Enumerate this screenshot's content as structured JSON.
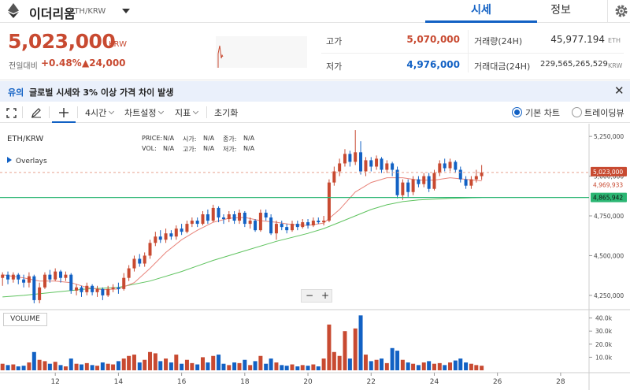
{
  "header": {
    "coin_name": "이더리움",
    "pair": "ETH/KRW",
    "tabs": [
      "시세",
      "정보"
    ]
  },
  "price": {
    "current": "5,023,000",
    "unit": "KRW",
    "change_label": "전일대비",
    "change_pct": "+0.48%",
    "change_abs": "▲24,000"
  },
  "stats": {
    "high_label": "고가",
    "high_value": "5,070,000",
    "low_label": "저가",
    "low_value": "4,976,000",
    "volume_label": "거래량(24H)",
    "volume_value": "45,977.194",
    "volume_unit": "ETH",
    "amount_label": "거래대금(24H)",
    "amount_value": "229,565,265,529",
    "amount_unit": "KRW"
  },
  "notice": {
    "tag": "유의",
    "text": "글로벌 시세와 3% 이상 가격 차이 발생"
  },
  "toolbar": {
    "interval": "4시간",
    "chart_settings": "차트설정",
    "indicators": "지표",
    "reset": "초기화",
    "basic_chart": "기본 차트",
    "tradingview": "트레이딩뷰"
  },
  "colors": {
    "up": "#c84a31",
    "down": "#1261c4",
    "ma_short": "#e8837a",
    "ma_long": "#5fc35f",
    "accent": "#1261c4"
  },
  "chart_data": {
    "type": "candlestick",
    "pair_label": "ETH/KRW",
    "overlays_label": "Overlays",
    "info": {
      "price_label": "PRICE:",
      "price": "N/A",
      "vol_label": "VOL:",
      "vol": "N/A",
      "open_label": "시가:",
      "open": "N/A",
      "high_label": "고가:",
      "high": "N/A",
      "close_label": "종가:",
      "close": "N/A",
      "low_label": "저가:",
      "low": "N/A"
    },
    "x_ticks": [
      "12",
      "14",
      "16",
      "18",
      "20",
      "22",
      "24",
      "26",
      "28"
    ],
    "y_ticks": [
      "5,250,000",
      "5,000,000",
      "4,750,000",
      "4,500,000",
      "4,250,000"
    ],
    "y_tick_values": [
      5250000,
      5000000,
      4750000,
      4500000,
      4250000
    ],
    "ylim": [
      4180000,
      5330000
    ],
    "xlim": [
      10.25,
      28.9
    ],
    "price_labels": [
      {
        "text": "5,023,000",
        "value": 5023000
      },
      {
        "text": "4,969,933",
        "value": 4969933
      },
      {
        "text": "4,865,942",
        "value": 4865942
      }
    ],
    "volume_label": "VOLUME",
    "volume_ticks": [
      "40.0k",
      "30.0k",
      "20.0k",
      "10.0k"
    ],
    "volume_tick_values": [
      40000,
      30000,
      20000,
      10000
    ],
    "volume_max": 44000,
    "candles": [
      {
        "x": 10.33,
        "o": 4360000,
        "c": 4380000,
        "h": 4395000,
        "l": 4310000,
        "v": 5000
      },
      {
        "x": 10.5,
        "o": 4380000,
        "c": 4350000,
        "h": 4400000,
        "l": 4320000,
        "v": 4000
      },
      {
        "x": 10.67,
        "o": 4350000,
        "c": 4380000,
        "h": 4395000,
        "l": 4330000,
        "v": 4500
      },
      {
        "x": 10.83,
        "o": 4380000,
        "c": 4350000,
        "h": 4390000,
        "l": 4320000,
        "v": 3000
      },
      {
        "x": 11.0,
        "o": 4350000,
        "c": 4330000,
        "h": 4380000,
        "l": 4300000,
        "v": 3500
      },
      {
        "x": 11.17,
        "o": 4330000,
        "c": 4370000,
        "h": 4395000,
        "l": 4300000,
        "v": 6000
      },
      {
        "x": 11.33,
        "o": 4370000,
        "c": 4220000,
        "h": 4380000,
        "l": 4200000,
        "v": 14000
      },
      {
        "x": 11.5,
        "o": 4220000,
        "c": 4300000,
        "h": 4330000,
        "l": 4200000,
        "v": 8000
      },
      {
        "x": 11.67,
        "o": 4300000,
        "c": 4380000,
        "h": 4395000,
        "l": 4290000,
        "v": 7000
      },
      {
        "x": 11.83,
        "o": 4380000,
        "c": 4350000,
        "h": 4410000,
        "l": 4330000,
        "v": 5000
      },
      {
        "x": 12.0,
        "o": 4350000,
        "c": 4400000,
        "h": 4420000,
        "l": 4340000,
        "v": 6500
      },
      {
        "x": 12.17,
        "o": 4400000,
        "c": 4360000,
        "h": 4410000,
        "l": 4330000,
        "v": 4000
      },
      {
        "x": 12.33,
        "o": 4360000,
        "c": 4380000,
        "h": 4400000,
        "l": 4340000,
        "v": 3000
      },
      {
        "x": 12.5,
        "o": 4380000,
        "c": 4280000,
        "h": 4390000,
        "l": 4260000,
        "v": 9000
      },
      {
        "x": 12.67,
        "o": 4280000,
        "c": 4300000,
        "h": 4320000,
        "l": 4250000,
        "v": 5000
      },
      {
        "x": 12.83,
        "o": 4300000,
        "c": 4270000,
        "h": 4310000,
        "l": 4240000,
        "v": 4500
      },
      {
        "x": 13.0,
        "o": 4270000,
        "c": 4310000,
        "h": 4330000,
        "l": 4250000,
        "v": 5500
      },
      {
        "x": 13.17,
        "o": 4310000,
        "c": 4270000,
        "h": 4320000,
        "l": 4250000,
        "v": 4000
      },
      {
        "x": 13.33,
        "o": 4270000,
        "c": 4290000,
        "h": 4310000,
        "l": 4240000,
        "v": 3500
      },
      {
        "x": 13.5,
        "o": 4290000,
        "c": 4250000,
        "h": 4300000,
        "l": 4220000,
        "v": 6000
      },
      {
        "x": 13.67,
        "o": 4250000,
        "c": 4290000,
        "h": 4310000,
        "l": 4240000,
        "v": 5000
      },
      {
        "x": 13.83,
        "o": 4290000,
        "c": 4300000,
        "h": 4320000,
        "l": 4270000,
        "v": 4500
      },
      {
        "x": 14.0,
        "o": 4300000,
        "c": 4290000,
        "h": 4330000,
        "l": 4260000,
        "v": 7000
      },
      {
        "x": 14.17,
        "o": 4290000,
        "c": 4360000,
        "h": 4390000,
        "l": 4280000,
        "v": 9000
      },
      {
        "x": 14.33,
        "o": 4360000,
        "c": 4420000,
        "h": 4440000,
        "l": 4340000,
        "v": 11000
      },
      {
        "x": 14.5,
        "o": 4420000,
        "c": 4480000,
        "h": 4500000,
        "l": 4400000,
        "v": 12000
      },
      {
        "x": 14.67,
        "o": 4480000,
        "c": 4450000,
        "h": 4510000,
        "l": 4430000,
        "v": 6000
      },
      {
        "x": 14.83,
        "o": 4450000,
        "c": 4500000,
        "h": 4520000,
        "l": 4430000,
        "v": 8000
      },
      {
        "x": 15.0,
        "o": 4500000,
        "c": 4580000,
        "h": 4600000,
        "l": 4480000,
        "v": 14000
      },
      {
        "x": 15.17,
        "o": 4580000,
        "c": 4620000,
        "h": 4650000,
        "l": 4560000,
        "v": 13000
      },
      {
        "x": 15.33,
        "o": 4620000,
        "c": 4600000,
        "h": 4660000,
        "l": 4580000,
        "v": 7000
      },
      {
        "x": 15.5,
        "o": 4600000,
        "c": 4640000,
        "h": 4670000,
        "l": 4580000,
        "v": 9000
      },
      {
        "x": 15.67,
        "o": 4640000,
        "c": 4620000,
        "h": 4660000,
        "l": 4600000,
        "v": 6000
      },
      {
        "x": 15.83,
        "o": 4620000,
        "c": 4670000,
        "h": 4690000,
        "l": 4600000,
        "v": 12000
      },
      {
        "x": 16.0,
        "o": 4670000,
        "c": 4650000,
        "h": 4700000,
        "l": 4630000,
        "v": 5000
      },
      {
        "x": 16.17,
        "o": 4650000,
        "c": 4700000,
        "h": 4720000,
        "l": 4640000,
        "v": 8000
      },
      {
        "x": 16.33,
        "o": 4700000,
        "c": 4720000,
        "h": 4740000,
        "l": 4680000,
        "v": 5500
      },
      {
        "x": 16.5,
        "o": 4720000,
        "c": 4700000,
        "h": 4740000,
        "l": 4680000,
        "v": 4500
      },
      {
        "x": 16.67,
        "o": 4700000,
        "c": 4760000,
        "h": 4780000,
        "l": 4690000,
        "v": 10000
      },
      {
        "x": 16.83,
        "o": 4760000,
        "c": 4720000,
        "h": 4790000,
        "l": 4700000,
        "v": 6000
      },
      {
        "x": 17.0,
        "o": 4720000,
        "c": 4800000,
        "h": 4820000,
        "l": 4710000,
        "v": 11000
      },
      {
        "x": 17.17,
        "o": 4800000,
        "c": 4740000,
        "h": 4810000,
        "l": 4710000,
        "v": 12000
      },
      {
        "x": 17.33,
        "o": 4740000,
        "c": 4730000,
        "h": 4760000,
        "l": 4700000,
        "v": 5000
      },
      {
        "x": 17.5,
        "o": 4730000,
        "c": 4760000,
        "h": 4780000,
        "l": 4710000,
        "v": 4000
      },
      {
        "x": 17.67,
        "o": 4760000,
        "c": 4720000,
        "h": 4780000,
        "l": 4700000,
        "v": 6000
      },
      {
        "x": 17.83,
        "o": 4720000,
        "c": 4770000,
        "h": 4790000,
        "l": 4700000,
        "v": 5500
      },
      {
        "x": 18.0,
        "o": 4770000,
        "c": 4700000,
        "h": 4780000,
        "l": 4680000,
        "v": 8000
      },
      {
        "x": 18.17,
        "o": 4700000,
        "c": 4720000,
        "h": 4740000,
        "l": 4670000,
        "v": 4000
      },
      {
        "x": 18.33,
        "o": 4720000,
        "c": 4660000,
        "h": 4730000,
        "l": 4650000,
        "v": 7000
      },
      {
        "x": 18.5,
        "o": 4660000,
        "c": 4770000,
        "h": 4790000,
        "l": 4650000,
        "v": 11000
      },
      {
        "x": 18.67,
        "o": 4770000,
        "c": 4740000,
        "h": 4790000,
        "l": 4720000,
        "v": 5000
      },
      {
        "x": 18.83,
        "o": 4740000,
        "c": 4640000,
        "h": 4760000,
        "l": 4630000,
        "v": 9000
      },
      {
        "x": 19.0,
        "o": 4640000,
        "c": 4700000,
        "h": 4720000,
        "l": 4600000,
        "v": 6000
      },
      {
        "x": 19.17,
        "o": 4700000,
        "c": 4680000,
        "h": 4720000,
        "l": 4660000,
        "v": 4000
      },
      {
        "x": 19.33,
        "o": 4680000,
        "c": 4660000,
        "h": 4700000,
        "l": 4640000,
        "v": 3500
      },
      {
        "x": 19.5,
        "o": 4660000,
        "c": 4700000,
        "h": 4720000,
        "l": 4650000,
        "v": 4500
      },
      {
        "x": 19.67,
        "o": 4700000,
        "c": 4680000,
        "h": 4720000,
        "l": 4660000,
        "v": 3000
      },
      {
        "x": 19.83,
        "o": 4680000,
        "c": 4710000,
        "h": 4730000,
        "l": 4670000,
        "v": 4000
      },
      {
        "x": 20.0,
        "o": 4710000,
        "c": 4690000,
        "h": 4730000,
        "l": 4670000,
        "v": 3500
      },
      {
        "x": 20.17,
        "o": 4690000,
        "c": 4720000,
        "h": 4740000,
        "l": 4680000,
        "v": 4500
      },
      {
        "x": 20.33,
        "o": 4720000,
        "c": 4710000,
        "h": 4740000,
        "l": 4700000,
        "v": 3000
      },
      {
        "x": 20.5,
        "o": 4710000,
        "c": 4720000,
        "h": 4750000,
        "l": 4690000,
        "v": 9000
      },
      {
        "x": 20.67,
        "o": 4720000,
        "c": 4960000,
        "h": 4980000,
        "l": 4710000,
        "v": 35000
      },
      {
        "x": 20.83,
        "o": 4960000,
        "c": 5030000,
        "h": 5060000,
        "l": 4940000,
        "v": 14000
      },
      {
        "x": 21.0,
        "o": 5030000,
        "c": 5080000,
        "h": 5110000,
        "l": 5000000,
        "v": 11000
      },
      {
        "x": 21.17,
        "o": 5080000,
        "c": 5140000,
        "h": 5170000,
        "l": 5060000,
        "v": 30000
      },
      {
        "x": 21.33,
        "o": 5140000,
        "c": 5090000,
        "h": 5160000,
        "l": 5060000,
        "v": 9000
      },
      {
        "x": 21.5,
        "o": 5090000,
        "c": 5150000,
        "h": 5290000,
        "l": 5070000,
        "v": 32000
      },
      {
        "x": 21.67,
        "o": 5150000,
        "c": 5030000,
        "h": 5220000,
        "l": 5010000,
        "v": 42000
      },
      {
        "x": 21.83,
        "o": 5030000,
        "c": 5100000,
        "h": 5120000,
        "l": 5000000,
        "v": 12000
      },
      {
        "x": 22.0,
        "o": 5100000,
        "c": 5060000,
        "h": 5120000,
        "l": 5030000,
        "v": 7000
      },
      {
        "x": 22.17,
        "o": 5060000,
        "c": 5110000,
        "h": 5130000,
        "l": 5040000,
        "v": 8000
      },
      {
        "x": 22.33,
        "o": 5110000,
        "c": 5040000,
        "h": 5120000,
        "l": 5020000,
        "v": 9000
      },
      {
        "x": 22.5,
        "o": 5040000,
        "c": 5080000,
        "h": 5100000,
        "l": 5020000,
        "v": 5500
      },
      {
        "x": 22.67,
        "o": 5080000,
        "c": 5040000,
        "h": 5090000,
        "l": 5000000,
        "v": 17000
      },
      {
        "x": 22.83,
        "o": 5040000,
        "c": 4880000,
        "h": 5060000,
        "l": 4860000,
        "v": 15000
      },
      {
        "x": 23.0,
        "o": 4880000,
        "c": 4960000,
        "h": 4980000,
        "l": 4850000,
        "v": 8000
      },
      {
        "x": 23.17,
        "o": 4960000,
        "c": 4900000,
        "h": 4980000,
        "l": 4870000,
        "v": 6000
      },
      {
        "x": 23.33,
        "o": 4900000,
        "c": 4980000,
        "h": 5000000,
        "l": 4880000,
        "v": 5000
      },
      {
        "x": 23.5,
        "o": 4980000,
        "c": 4950000,
        "h": 5000000,
        "l": 4930000,
        "v": 4000
      },
      {
        "x": 23.67,
        "o": 4950000,
        "c": 5000000,
        "h": 5020000,
        "l": 4930000,
        "v": 6000
      },
      {
        "x": 23.83,
        "o": 5000000,
        "c": 4920000,
        "h": 5020000,
        "l": 4900000,
        "v": 7000
      },
      {
        "x": 24.0,
        "o": 4920000,
        "c": 5020000,
        "h": 5040000,
        "l": 4910000,
        "v": 5000
      },
      {
        "x": 24.17,
        "o": 5020000,
        "c": 5080000,
        "h": 5100000,
        "l": 5000000,
        "v": 5500
      },
      {
        "x": 24.33,
        "o": 5080000,
        "c": 5050000,
        "h": 5110000,
        "l": 5030000,
        "v": 4000
      },
      {
        "x": 24.5,
        "o": 5050000,
        "c": 5090000,
        "h": 5110000,
        "l": 5030000,
        "v": 6000
      },
      {
        "x": 24.67,
        "o": 5090000,
        "c": 5040000,
        "h": 5100000,
        "l": 5020000,
        "v": 7500
      },
      {
        "x": 24.83,
        "o": 5040000,
        "c": 4980000,
        "h": 5060000,
        "l": 4960000,
        "v": 9000
      },
      {
        "x": 25.0,
        "o": 4980000,
        "c": 4940000,
        "h": 5000000,
        "l": 4920000,
        "v": 6000
      },
      {
        "x": 25.17,
        "o": 4940000,
        "c": 4980000,
        "h": 5000000,
        "l": 4920000,
        "v": 5000
      },
      {
        "x": 25.33,
        "o": 4980000,
        "c": 5000000,
        "h": 5040000,
        "l": 4960000,
        "v": 4000
      },
      {
        "x": 25.5,
        "o": 5000000,
        "c": 5023000,
        "h": 5070000,
        "l": 4976000,
        "v": 3500
      }
    ],
    "ma_short": [
      [
        10.33,
        4380000
      ],
      [
        11.0,
        4360000
      ],
      [
        11.5,
        4340000
      ],
      [
        12.0,
        4340000
      ],
      [
        12.5,
        4330000
      ],
      [
        13.0,
        4300000
      ],
      [
        13.5,
        4285000
      ],
      [
        14.0,
        4290000
      ],
      [
        14.5,
        4330000
      ],
      [
        15.0,
        4420000
      ],
      [
        15.5,
        4520000
      ],
      [
        16.0,
        4600000
      ],
      [
        16.5,
        4660000
      ],
      [
        17.0,
        4710000
      ],
      [
        17.5,
        4735000
      ],
      [
        18.0,
        4740000
      ],
      [
        18.5,
        4720000
      ],
      [
        19.0,
        4710000
      ],
      [
        19.5,
        4695000
      ],
      [
        20.0,
        4690000
      ],
      [
        20.5,
        4705000
      ],
      [
        21.0,
        4790000
      ],
      [
        21.5,
        4900000
      ],
      [
        22.0,
        4960000
      ],
      [
        22.5,
        4990000
      ],
      [
        23.0,
        4990000
      ],
      [
        23.5,
        4975000
      ],
      [
        24.0,
        4975000
      ],
      [
        24.5,
        4990000
      ],
      [
        25.0,
        4980000
      ],
      [
        25.5,
        4970000
      ]
    ],
    "ma_long": [
      [
        10.33,
        4240000
      ],
      [
        11.0,
        4250000
      ],
      [
        12.0,
        4270000
      ],
      [
        13.0,
        4290000
      ],
      [
        14.0,
        4300000
      ],
      [
        15.0,
        4340000
      ],
      [
        16.0,
        4400000
      ],
      [
        17.0,
        4470000
      ],
      [
        18.0,
        4530000
      ],
      [
        19.0,
        4590000
      ],
      [
        20.0,
        4640000
      ],
      [
        20.5,
        4670000
      ],
      [
        21.0,
        4710000
      ],
      [
        21.5,
        4750000
      ],
      [
        22.0,
        4790000
      ],
      [
        22.5,
        4820000
      ],
      [
        23.0,
        4840000
      ],
      [
        23.5,
        4850000
      ],
      [
        24.0,
        4855000
      ],
      [
        24.5,
        4860000
      ],
      [
        25.0,
        4863000
      ],
      [
        25.5,
        4865942
      ]
    ]
  }
}
